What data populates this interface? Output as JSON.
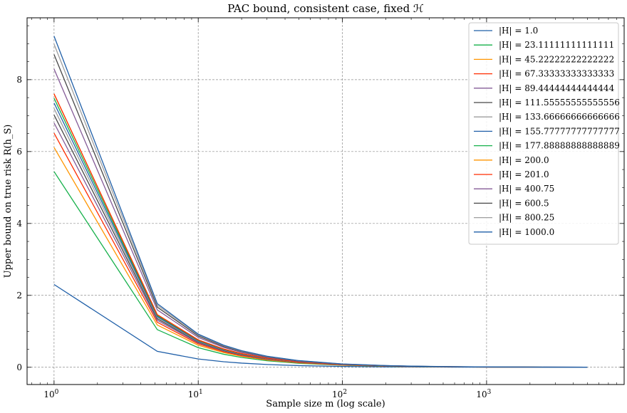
{
  "chart_data": {
    "type": "line",
    "title": "PAC bound, consistent case, fixed ℋ",
    "xlabel": "Sample size m (log scale)",
    "ylabel": "Upper bound on true risk R(h_S)",
    "xscale": "log",
    "xlim": [
      0.65,
      9000
    ],
    "ylim": [
      -0.48,
      9.72
    ],
    "x": [
      1,
      5.2,
      10,
      15,
      20,
      30,
      50,
      100,
      200,
      300,
      500,
      1000,
      2000,
      5000
    ],
    "grid": true,
    "legend_position": "top-right",
    "x_ticks": [
      {
        "value": 1,
        "base": "10",
        "exp": "0"
      },
      {
        "value": 10,
        "base": "10",
        "exp": "1"
      },
      {
        "value": 100,
        "base": "10",
        "exp": "2"
      },
      {
        "value": 1000,
        "base": "10",
        "exp": "3"
      }
    ],
    "y_ticks": [
      {
        "value": 0,
        "label": "0"
      },
      {
        "value": 2,
        "label": "2"
      },
      {
        "value": 4,
        "label": "4"
      },
      {
        "value": 6,
        "label": "6"
      },
      {
        "value": 8,
        "label": "8"
      }
    ],
    "delta": 0.1,
    "series": [
      {
        "name": "|H| = 1.0",
        "H": 1.0,
        "color": "#1f5fa8"
      },
      {
        "name": "|H| = 23.11111111111111",
        "H": 23.11111111111111,
        "color": "#15b04a"
      },
      {
        "name": "|H| = 45.22222222222222",
        "H": 45.22222222222222,
        "color": "#ff9500"
      },
      {
        "name": "|H| = 67.33333333333333",
        "H": 67.33333333333333,
        "color": "#ff2c00"
      },
      {
        "name": "|H| = 89.44444444444444",
        "H": 89.44444444444444,
        "color": "#845b97"
      },
      {
        "name": "|H| = 111.55555555555556",
        "H": 111.55555555555556,
        "color": "#474747"
      },
      {
        "name": "|H| = 133.66666666666666",
        "H": 133.66666666666666,
        "color": "#9e9e9e"
      },
      {
        "name": "|H| = 155.77777777777777",
        "H": 155.77777777777777,
        "color": "#1f5fa8"
      },
      {
        "name": "|H| = 177.88888888888889",
        "H": 177.88888888888889,
        "color": "#15b04a"
      },
      {
        "name": "|H| = 200.0",
        "H": 200.0,
        "color": "#ff9500"
      },
      {
        "name": "|H| = 201.0",
        "H": 201.0,
        "color": "#ff2c00"
      },
      {
        "name": "|H| = 400.75",
        "H": 400.75,
        "color": "#845b97"
      },
      {
        "name": "|H| = 600.5",
        "H": 600.5,
        "color": "#474747"
      },
      {
        "name": "|H| = 800.25",
        "H": 800.25,
        "color": "#9e9e9e"
      },
      {
        "name": "|H| = 1000.0",
        "H": 1000.0,
        "color": "#1f5fa8"
      }
    ]
  }
}
